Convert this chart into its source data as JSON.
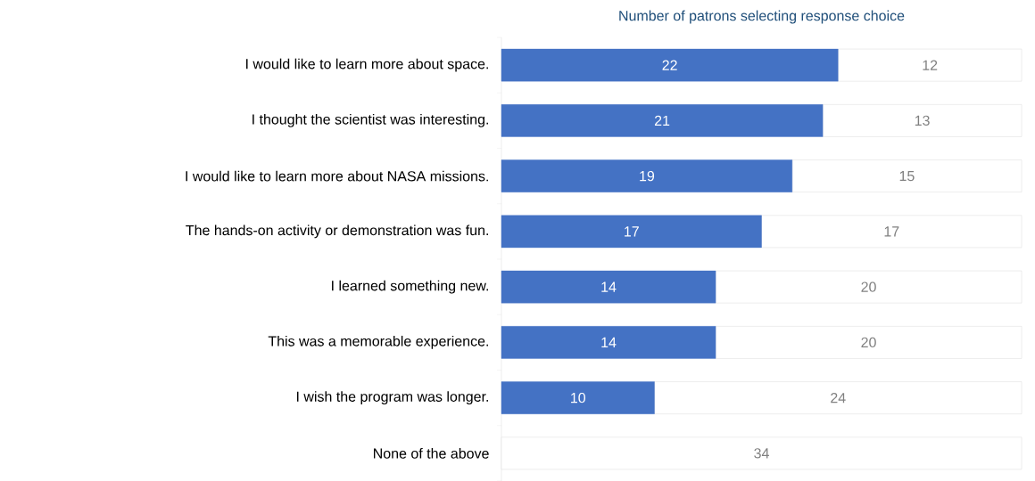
{
  "chart_data": {
    "type": "bar",
    "orientation": "horizontal",
    "stacked": true,
    "title": "Number of patrons selecting response choice",
    "categories": [
      "I would like to learn more about space.",
      "I thought the scientist was interesting.",
      "I would like to learn more about NASA missions.",
      "The hands-on activity or demonstration was fun.",
      "I learned something new.",
      "This was a memorable experience.",
      "I wish the program was longer.",
      "None of the above"
    ],
    "series": [
      {
        "color": "#4472c4",
        "values": [
          22,
          21,
          19,
          17,
          14,
          14,
          10,
          0
        ],
        "value_labels": [
          "22",
          "21",
          "19",
          "17",
          "14",
          "14",
          "10",
          null
        ]
      },
      {
        "color": "#ffffff",
        "values": [
          12,
          13,
          15,
          17,
          20,
          20,
          24,
          34
        ],
        "value_labels": [
          "12",
          "13",
          "15",
          "17",
          "20",
          "20",
          "24",
          "34"
        ]
      }
    ]
  }
}
